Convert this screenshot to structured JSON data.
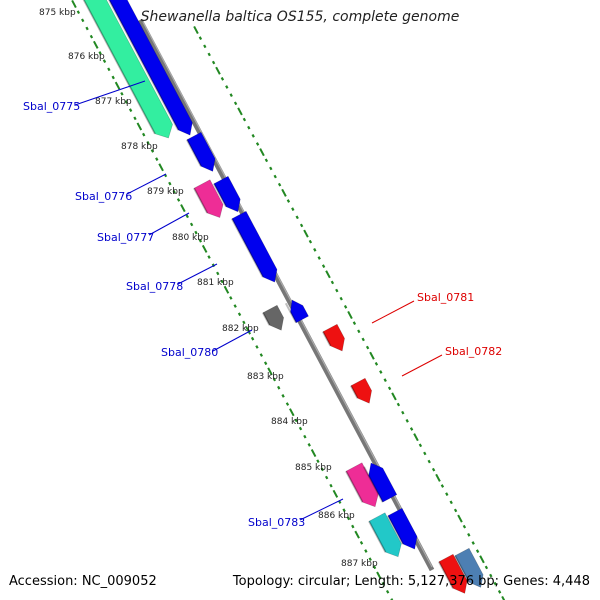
{
  "title": "Shewanella baltica OS155, complete genome",
  "footer": {
    "accession": "Accession: NC_009052",
    "topology": "Topology: circular; Length: 5,127,376 bp; Genes: 4,448"
  },
  "colors": {
    "forward_label": "#0000cc",
    "reverse_label": "#dd0000",
    "tick": "#228822",
    "backbone": "#888888",
    "cds_blue": "#0000ee",
    "cds_mint": "#33eea0",
    "cds_pink": "#ee2d96",
    "cds_gray": "#666666",
    "cds_red": "#ee1111",
    "cds_cyan": "#22c8c8",
    "cds_steel": "#4d7fb3"
  },
  "kbp_ticks": [
    "875 kbp",
    "876 kbp",
    "877 kbp",
    "878 kbp",
    "879 kbp",
    "880 kbp",
    "881 kbp",
    "882 kbp",
    "883 kbp",
    "884 kbp",
    "885 kbp",
    "886 kbp",
    "887 kbp"
  ],
  "gene_labels": [
    {
      "id": "Sbal_0775",
      "strand": "forward"
    },
    {
      "id": "Sbal_0776",
      "strand": "forward"
    },
    {
      "id": "Sbal_0777",
      "strand": "forward"
    },
    {
      "id": "Sbal_0778",
      "strand": "forward"
    },
    {
      "id": "Sbal_0780",
      "strand": "forward"
    },
    {
      "id": "Sbal_0783",
      "strand": "forward"
    },
    {
      "id": "Sbal_0781",
      "strand": "reverse"
    },
    {
      "id": "Sbal_0782",
      "strand": "reverse"
    }
  ]
}
